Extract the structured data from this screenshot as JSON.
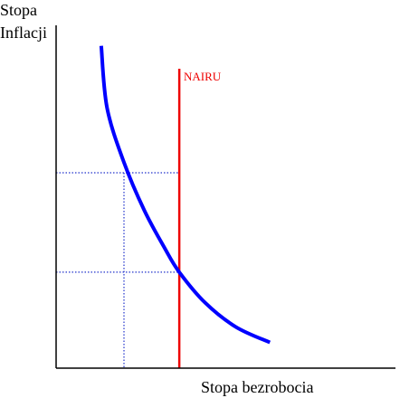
{
  "chart_data": {
    "type": "line",
    "ylabel_line1": "Stopa",
    "ylabel_line2": "Inflacji",
    "xlabel": "Stopa bezrobocia",
    "xlim": [
      0,
      10
    ],
    "ylim": [
      0,
      10
    ],
    "series": [
      {
        "type": "curve",
        "color": "#0000ff",
        "x": [
          1.33,
          1.5,
          2.0,
          2.6,
          3.2,
          3.63,
          4.4,
          5.3,
          6.3
        ],
        "y": [
          9.4,
          7.6,
          6.0,
          4.6,
          3.5,
          2.8,
          1.9,
          1.2,
          0.75
        ]
      },
      {
        "name": "NAIRU",
        "type": "vertical-line",
        "color": "#ee0000",
        "x": 3.63
      }
    ],
    "reference_lines": [
      {
        "x": 2.0,
        "y": 5.7
      },
      {
        "x": 3.63,
        "y": 2.8
      }
    ],
    "reference_color": "#2233cc",
    "grid": false,
    "legend": "none"
  }
}
